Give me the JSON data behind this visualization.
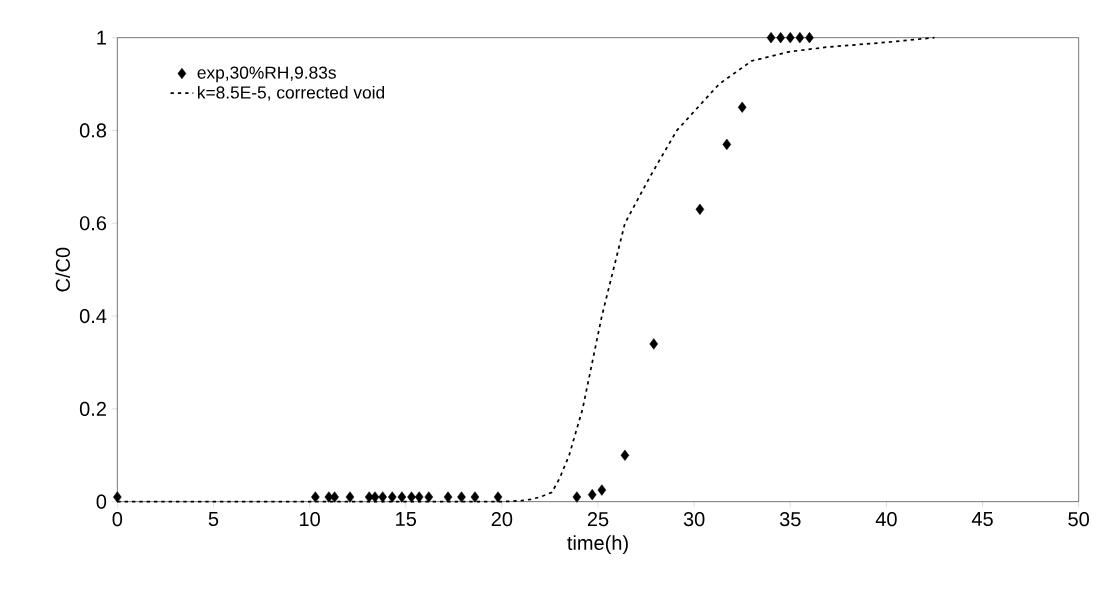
{
  "chart_data": {
    "type": "scatter",
    "xlabel": "time(h)",
    "ylabel": "C/C0",
    "xlim": [
      0,
      50
    ],
    "ylim": [
      0,
      1
    ],
    "xticks": [
      0,
      5,
      10,
      15,
      20,
      25,
      30,
      35,
      40,
      45,
      50
    ],
    "yticks": [
      0,
      0.2,
      0.4,
      0.6,
      0.8,
      1
    ],
    "grid": false,
    "legend": "top left",
    "series": [
      {
        "name": "exp,30%RH,9.83s",
        "marker": "diamond",
        "color": "#000000",
        "x": [
          0,
          10.3,
          11.0,
          11.3,
          12.1,
          13.1,
          13.4,
          13.8,
          14.3,
          14.8,
          15.3,
          15.7,
          16.2,
          17.2,
          17.9,
          18.6,
          19.8,
          23.9,
          24.7,
          25.2,
          26.4,
          27.9,
          30.3,
          31.7,
          32.5,
          34.0,
          34.5,
          35.0,
          35.5,
          36.0
        ],
        "values": [
          0.01,
          0.01,
          0.01,
          0.01,
          0.01,
          0.01,
          0.01,
          0.01,
          0.01,
          0.01,
          0.01,
          0.01,
          0.01,
          0.01,
          0.01,
          0.01,
          0.01,
          0.01,
          0.015,
          0.025,
          0.1,
          0.34,
          0.63,
          0.77,
          0.85,
          1,
          1,
          1,
          1,
          1
        ]
      },
      {
        "name": "k=8.5E-5, corrected void",
        "type": "line",
        "line_style": "dotted",
        "marker": "none",
        "color": "#000000",
        "x": [
          0,
          20,
          21,
          21.5,
          22,
          22.6,
          23,
          23.5,
          24.2,
          25.2,
          26.4,
          27.7,
          29.1,
          31.3,
          33,
          35,
          37,
          40,
          42.5
        ],
        "values": [
          0,
          0,
          0.002,
          0.005,
          0.01,
          0.02,
          0.05,
          0.1,
          0.2,
          0.4,
          0.6,
          0.7,
          0.8,
          0.9,
          0.95,
          0.97,
          0.98,
          0.99,
          1.0
        ]
      }
    ]
  }
}
